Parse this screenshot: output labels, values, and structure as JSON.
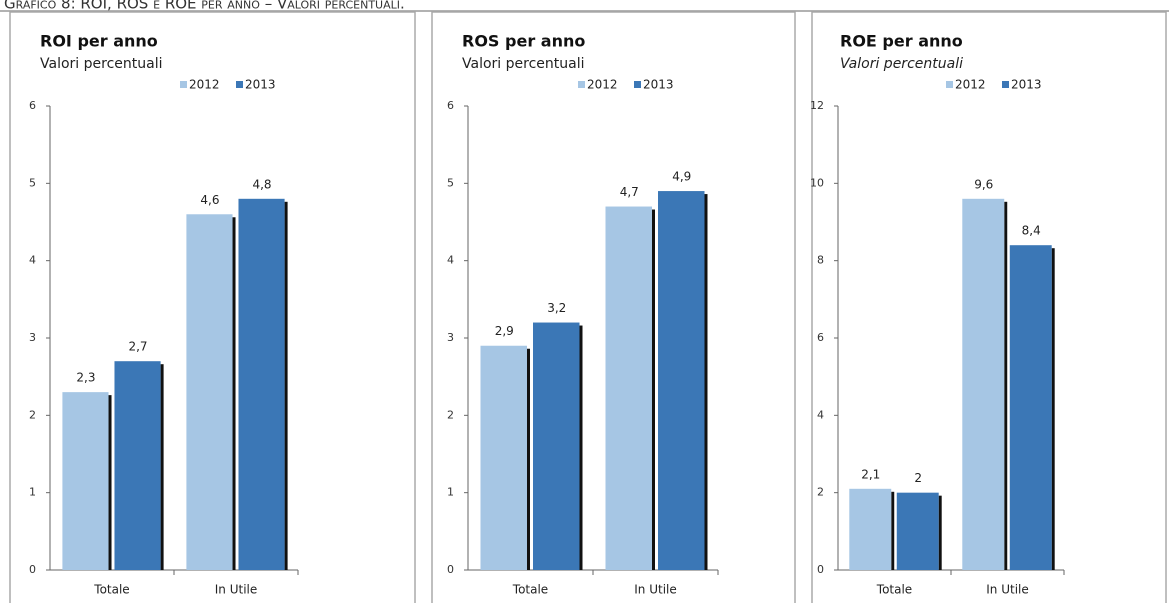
{
  "caption": "Grafico 8: ROI, ROS e ROE per anno – Valori percentuali.",
  "chart_data": [
    {
      "type": "bar",
      "title": "ROI per anno",
      "subtitle": "Valori percentuali",
      "categories": [
        "Totale",
        "In Utile"
      ],
      "series": [
        {
          "name": "2012",
          "color": "#a6c6e4",
          "values": [
            2.3,
            4.6
          ],
          "value_labels": [
            "2,3",
            "4,6"
          ]
        },
        {
          "name": "2013",
          "color": "#3b77b6",
          "values": [
            2.7,
            4.8
          ],
          "value_labels": [
            "2,7",
            "4,8"
          ]
        }
      ],
      "ylim": [
        0,
        6
      ],
      "yticks": [
        0,
        1,
        2,
        3,
        4,
        5,
        6
      ]
    },
    {
      "type": "bar",
      "title": "ROS per anno",
      "subtitle": "Valori percentuali",
      "categories": [
        "Totale",
        "In Utile"
      ],
      "series": [
        {
          "name": "2012",
          "color": "#a6c6e4",
          "values": [
            2.9,
            4.7
          ],
          "value_labels": [
            "2,9",
            "4,7"
          ]
        },
        {
          "name": "2013",
          "color": "#3b77b6",
          "values": [
            3.2,
            4.9
          ],
          "value_labels": [
            "3,2",
            "4,9"
          ]
        }
      ],
      "ylim": [
        0,
        6
      ],
      "yticks": [
        0,
        1,
        2,
        3,
        4,
        5,
        6
      ]
    },
    {
      "type": "bar",
      "title": "ROE per anno",
      "subtitle": "Valori percentuali",
      "categories": [
        "Totale",
        "In Utile"
      ],
      "series": [
        {
          "name": "2012",
          "color": "#a6c6e4",
          "values": [
            2.1,
            9.6
          ],
          "value_labels": [
            "2,1",
            "9,6"
          ]
        },
        {
          "name": "2013",
          "color": "#3b77b6",
          "values": [
            2,
            8.4
          ],
          "value_labels": [
            "2",
            "8,4"
          ]
        }
      ],
      "ylim": [
        0,
        12
      ],
      "yticks": [
        0,
        2,
        4,
        6,
        8,
        10,
        12
      ]
    }
  ]
}
